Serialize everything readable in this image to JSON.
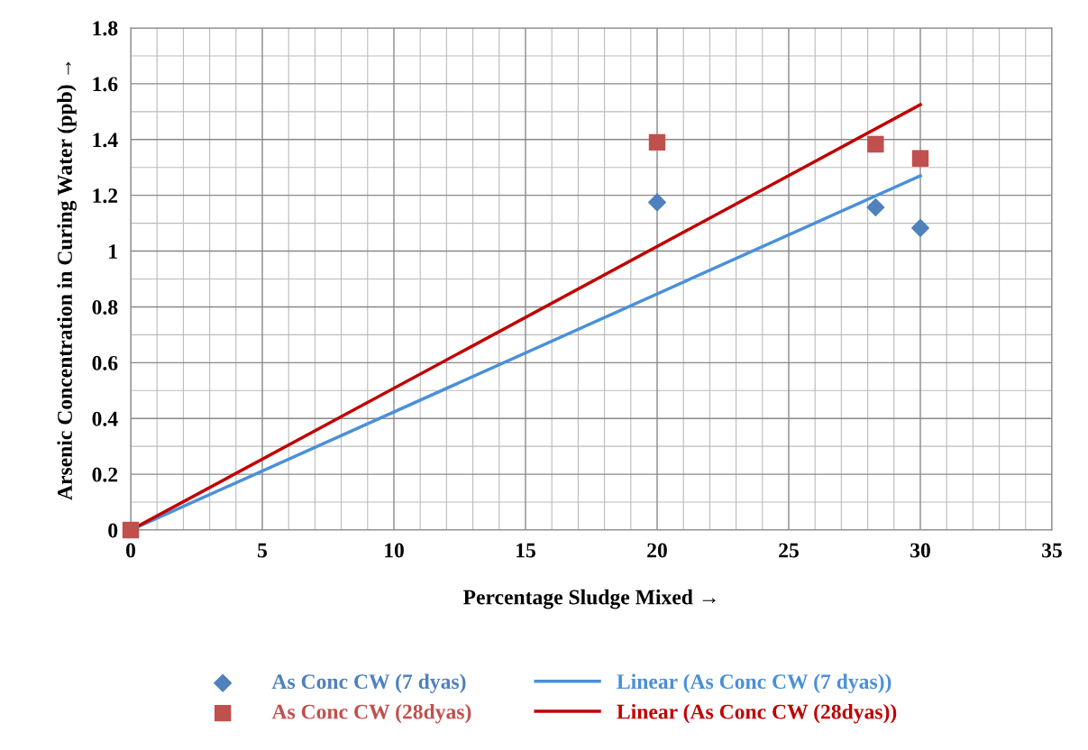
{
  "chart_data": {
    "type": "scatter",
    "xlabel": "Percentage Sludge Mixed →",
    "ylabel": "Arsenic Concentration in Curing Water (ppb) →",
    "xlim": [
      0,
      35
    ],
    "xticks": [
      0,
      5,
      10,
      15,
      20,
      25,
      30,
      35
    ],
    "ylim": [
      0,
      1.8
    ],
    "yticks": [
      0,
      0.2,
      0.4,
      0.6,
      0.8,
      {
        "value": 1,
        "label": "1"
      },
      1.2,
      1.4,
      1.6,
      1.8
    ],
    "grid": true,
    "legend": "bottom",
    "series": [
      {
        "name": "As Conc CW (7 dyas)",
        "color": "#4f81bd",
        "marker": "diamond",
        "x": [
          20,
          28.3,
          30
        ],
        "values": [
          1.175,
          1.157,
          1.083
        ]
      },
      {
        "name": "As Conc CW (28dyas)",
        "color": "#c0504d",
        "marker": "square",
        "x": [
          0,
          20,
          28.3,
          30
        ],
        "values": [
          0,
          1.39,
          1.383,
          1.332
        ]
      },
      {
        "name": "Linear (As Conc CW (7 dyas))",
        "color": "#4a90d9",
        "type": "line",
        "x": [
          0,
          30
        ],
        "values": [
          0,
          1.27
        ]
      },
      {
        "name": "Linear (As Conc CW (28dyas))",
        "color": "#c00000",
        "type": "line",
        "x": [
          0,
          30
        ],
        "values": [
          0,
          1.525
        ]
      }
    ]
  }
}
